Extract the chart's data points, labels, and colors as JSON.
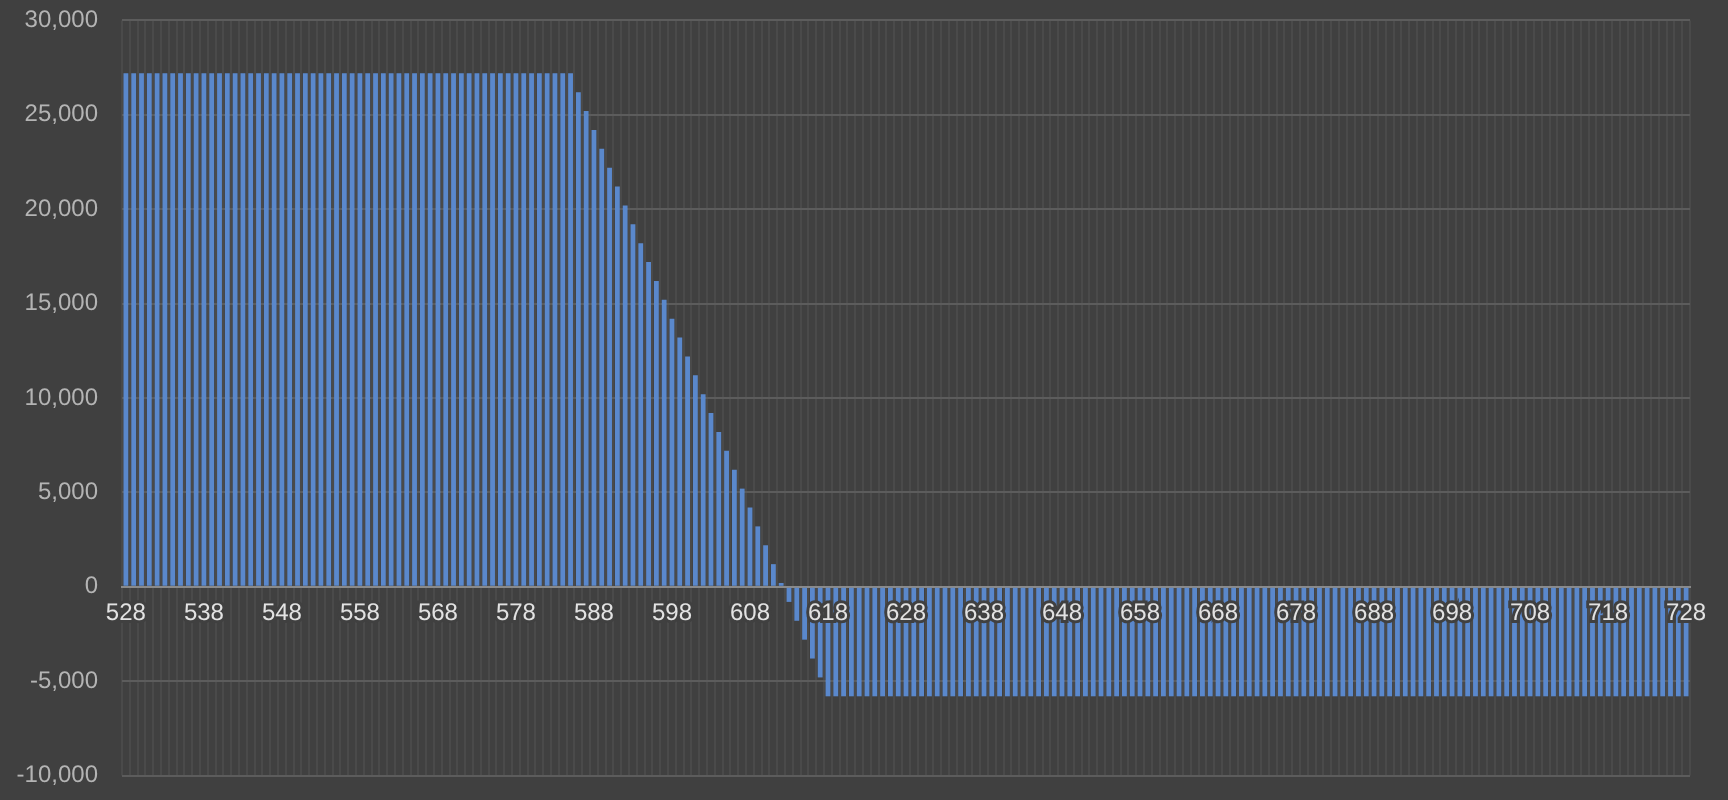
{
  "chart_data": {
    "type": "bar",
    "categories": [
      "528",
      null,
      null,
      null,
      null,
      null,
      null,
      null,
      null,
      null,
      "538",
      null,
      null,
      null,
      null,
      null,
      null,
      null,
      null,
      null,
      "548",
      null,
      null,
      null,
      null,
      null,
      null,
      null,
      null,
      null,
      "558",
      null,
      null,
      null,
      null,
      null,
      null,
      null,
      null,
      null,
      "568",
      null,
      null,
      null,
      null,
      null,
      null,
      null,
      null,
      null,
      "578",
      null,
      null,
      null,
      null,
      null,
      null,
      null,
      null,
      null,
      "588",
      null,
      null,
      null,
      null,
      null,
      null,
      null,
      null,
      null,
      "598",
      null,
      null,
      null,
      null,
      null,
      null,
      null,
      null,
      null,
      "608",
      null,
      null,
      null,
      null,
      null,
      null,
      null,
      null,
      null,
      "618",
      null,
      null,
      null,
      null,
      null,
      null,
      null,
      null,
      null,
      "628",
      null,
      null,
      null,
      null,
      null,
      null,
      null,
      null,
      null,
      "638",
      null,
      null,
      null,
      null,
      null,
      null,
      null,
      null,
      null,
      "648",
      null,
      null,
      null,
      null,
      null,
      null,
      null,
      null,
      null,
      "658",
      null,
      null,
      null,
      null,
      null,
      null,
      null,
      null,
      null,
      "668",
      null,
      null,
      null,
      null,
      null,
      null,
      null,
      null,
      null,
      "678",
      null,
      null,
      null,
      null,
      null,
      null,
      null,
      null,
      null,
      "688",
      null,
      null,
      null,
      null,
      null,
      null,
      null,
      null,
      null,
      "698",
      null,
      null,
      null,
      null,
      null,
      null,
      null,
      null,
      null,
      "708",
      null,
      null,
      null,
      null,
      null,
      null,
      null,
      null,
      null,
      "718",
      null,
      null,
      null,
      null,
      null,
      null,
      null,
      null,
      null,
      "728"
    ],
    "values": [
      27200,
      27200,
      27200,
      27200,
      27200,
      27200,
      27200,
      27200,
      27200,
      27200,
      27200,
      27200,
      27200,
      27200,
      27200,
      27200,
      27200,
      27200,
      27200,
      27200,
      27200,
      27200,
      27200,
      27200,
      27200,
      27200,
      27200,
      27200,
      27200,
      27200,
      27200,
      27200,
      27200,
      27200,
      27200,
      27200,
      27200,
      27200,
      27200,
      27200,
      27200,
      27200,
      27200,
      27200,
      27200,
      27200,
      27200,
      27200,
      27200,
      27200,
      27200,
      27200,
      27200,
      27200,
      27200,
      27200,
      27200,
      27200,
      26200,
      25200,
      24200,
      23200,
      22200,
      21200,
      20200,
      19200,
      18200,
      17200,
      16200,
      15200,
      14200,
      13200,
      12200,
      11200,
      10200,
      9200,
      8200,
      7200,
      6200,
      5200,
      4200,
      3200,
      2200,
      1200,
      200,
      -800,
      -1800,
      -2800,
      -3800,
      -4800,
      -5800,
      -5800,
      -5800,
      -5800,
      -5800,
      -5800,
      -5800,
      -5800,
      -5800,
      -5800,
      -5800,
      -5800,
      -5800,
      -5800,
      -5800,
      -5800,
      -5800,
      -5800,
      -5800,
      -5800,
      -5800,
      -5800,
      -5800,
      -5800,
      -5800,
      -5800,
      -5800,
      -5800,
      -5800,
      -5800,
      -5800,
      -5800,
      -5800,
      -5800,
      -5800,
      -5800,
      -5800,
      -5800,
      -5800,
      -5800,
      -5800,
      -5800,
      -5800,
      -5800,
      -5800,
      -5800,
      -5800,
      -5800,
      -5800,
      -5800,
      -5800,
      -5800,
      -5800,
      -5800,
      -5800,
      -5800,
      -5800,
      -5800,
      -5800,
      -5800,
      -5800,
      -5800,
      -5800,
      -5800,
      -5800,
      -5800,
      -5800,
      -5800,
      -5800,
      -5800,
      -5800,
      -5800,
      -5800,
      -5800,
      -5800,
      -5800,
      -5800,
      -5800,
      -5800,
      -5800,
      -5800,
      -5800,
      -5800,
      -5800,
      -5800,
      -5800,
      -5800,
      -5800,
      -5800,
      -5800,
      -5800,
      -5800,
      -5800,
      -5800,
      -5800,
      -5800,
      -5800,
      -5800,
      -5800,
      -5800,
      -5800,
      -5800,
      -5800,
      -5800,
      -5800,
      -5800,
      -5800,
      -5800,
      -5800,
      -5800,
      -5800
    ],
    "color": "#5a88cc",
    "ylim": [
      -10000,
      30000
    ],
    "yticks": [
      {
        "value": -10000,
        "label": "-10,000"
      },
      {
        "value": -5000,
        "label": "-5,000"
      },
      0,
      {
        "value": 5000,
        "label": "5,000"
      },
      {
        "value": 10000,
        "label": "10,000"
      },
      {
        "value": 15000,
        "label": "15,000"
      },
      {
        "value": 20000,
        "label": "20,000"
      },
      {
        "value": 25000,
        "label": "25,000"
      },
      {
        "value": 30000,
        "label": "30,000"
      }
    ],
    "grid": true
  }
}
